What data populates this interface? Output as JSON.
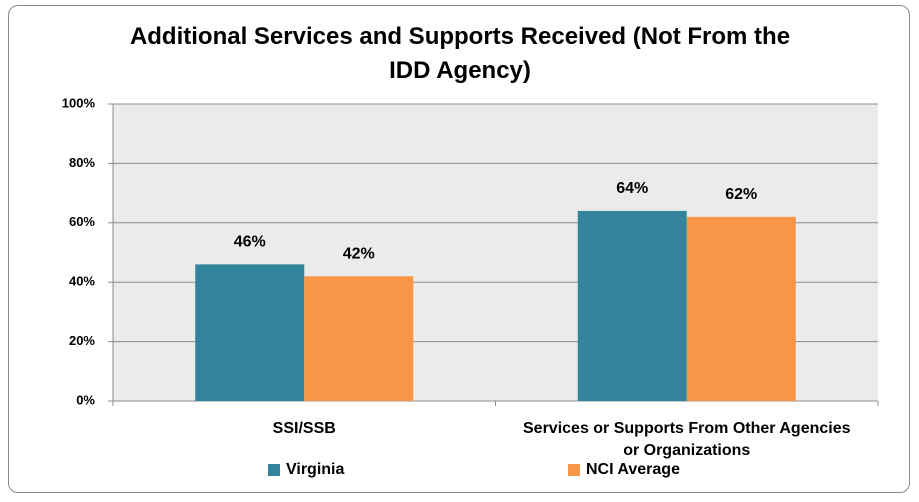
{
  "chart_data": {
    "type": "bar",
    "title": "Additional Services and Supports Received (Not From the IDD Agency)",
    "categories": [
      "SSI/SSB",
      "Services or Supports From Other Agencies or Organizations"
    ],
    "series": [
      {
        "name": "Virginia",
        "color": "#31849b",
        "values": [
          46,
          64
        ],
        "value_labels": [
          "46%",
          "64%"
        ]
      },
      {
        "name": "NCI Average",
        "color": "#f79646",
        "values": [
          42,
          62
        ],
        "value_labels": [
          "42%",
          "62%"
        ]
      }
    ],
    "ylim": [
      0,
      100
    ],
    "yticks": [
      {
        "value": 0,
        "label": "0%"
      },
      {
        "value": 20,
        "label": "20%"
      },
      {
        "value": 40,
        "label": "40%"
      },
      {
        "value": 60,
        "label": "60%"
      },
      {
        "value": 80,
        "label": "80%"
      },
      {
        "value": 100,
        "label": "100%"
      }
    ],
    "grid": true,
    "legend": "bottom"
  }
}
